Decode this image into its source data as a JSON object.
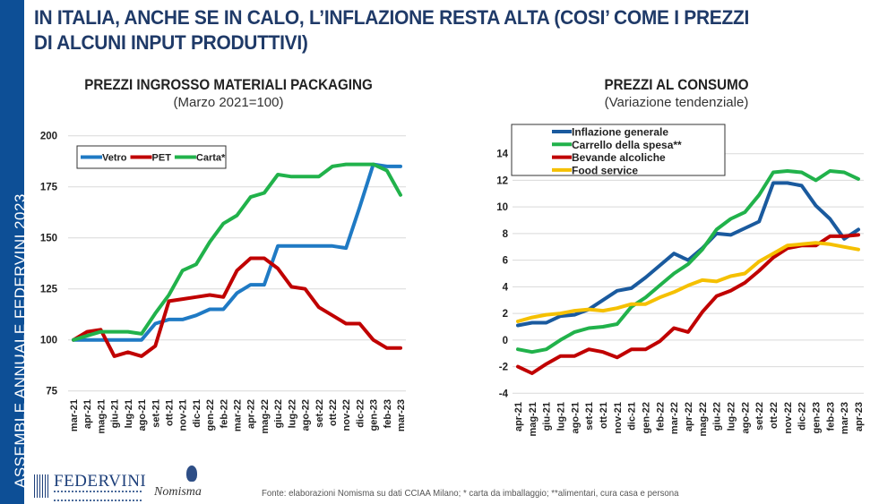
{
  "sidebar": {
    "text": "ASSEMBLE ANNUALE FEDERVINI 2023",
    "color": "#0d4f96"
  },
  "title": {
    "line1": "IN ITALIA, ANCHE SE IN CALO, L’INFLAZIONE RESTA ALTA (COSI’ COME I PREZZI",
    "line2": "DI ALCUNI INPUT PRODUTTIVI)"
  },
  "footer": {
    "source": "Fonte: elaborazioni Nomisma su dati CCIAA Milano; * carta da imballaggio; **alimentari, cura casa e persona"
  },
  "logos": {
    "federvini": "FEDERVINI",
    "nomisma": "Nomisma"
  },
  "chart_data": [
    {
      "type": "line",
      "title": "PREZZI INGROSSO MATERIALI PACKAGING",
      "subtitle": "(Marzo 2021=100)",
      "categories": [
        "mar-21",
        "apr-21",
        "mag-21",
        "giu-21",
        "lug-21",
        "ago-21",
        "set-21",
        "ott-21",
        "nov-21",
        "dic-21",
        "gen-22",
        "feb-22",
        "mar-22",
        "apr-22",
        "mag-22",
        "giu-22",
        "lug-22",
        "ago-22",
        "set-22",
        "ott-22",
        "nov-22",
        "dic-22",
        "gen-23",
        "feb-23",
        "mar-23"
      ],
      "ylim": [
        75,
        200
      ],
      "yticks": [
        75,
        100,
        125,
        150,
        175,
        200
      ],
      "grid": true,
      "legend": "top-left",
      "series": [
        {
          "name": "Vetro",
          "color": "#1f7ac4",
          "values": [
            100,
            100,
            100,
            100,
            100,
            100,
            108,
            110,
            110,
            112,
            115,
            115,
            123,
            127,
            127,
            146,
            146,
            146,
            146,
            146,
            145,
            165,
            186,
            185,
            185
          ]
        },
        {
          "name": "PET",
          "color": "#c00000",
          "values": [
            100,
            104,
            105,
            92,
            94,
            92,
            97,
            119,
            120,
            121,
            122,
            121,
            134,
            140,
            140,
            135,
            126,
            125,
            116,
            112,
            108,
            108,
            100,
            96,
            96
          ]
        },
        {
          "name": "Carta*",
          "color": "#21b24b",
          "values": [
            100,
            102,
            104,
            104,
            104,
            103,
            113,
            122,
            134,
            137,
            148,
            157,
            161,
            170,
            172,
            181,
            180,
            180,
            180,
            185,
            186,
            186,
            186,
            183,
            171
          ]
        }
      ]
    },
    {
      "type": "line",
      "title": "PREZZI AL CONSUMO",
      "subtitle": "(Variazione tendenziale)",
      "categories": [
        "apr-21",
        "mag-21",
        "giu-21",
        "lug-21",
        "ago-21",
        "set-21",
        "ott-21",
        "nov-21",
        "dic-21",
        "gen-22",
        "feb-22",
        "mar-22",
        "apr-22",
        "mag-22",
        "giu-22",
        "lug-22",
        "ago-22",
        "set-22",
        "ott-22",
        "nov-22",
        "dic-22",
        "gen-23",
        "feb-23",
        "mar-23",
        "apr-23"
      ],
      "ylim": [
        -4,
        14
      ],
      "yticks": [
        -4,
        -2,
        0,
        2,
        4,
        6,
        8,
        10,
        12,
        14
      ],
      "grid": true,
      "legend": "top-left",
      "series": [
        {
          "name": "Inflazione generale",
          "color": "#1a5a9e",
          "values": [
            1.1,
            1.3,
            1.3,
            1.8,
            1.9,
            2.3,
            3.0,
            3.7,
            3.9,
            4.7,
            5.6,
            6.5,
            6.0,
            6.9,
            8.0,
            7.9,
            8.4,
            8.9,
            11.8,
            11.8,
            11.6,
            10.1,
            9.1,
            7.6,
            8.3
          ]
        },
        {
          "name": "Carrello della spesa**",
          "color": "#21b24b",
          "values": [
            -0.7,
            -0.9,
            -0.7,
            0.0,
            0.6,
            0.9,
            1.0,
            1.2,
            2.5,
            3.2,
            4.1,
            5.0,
            5.7,
            6.8,
            8.3,
            9.1,
            9.6,
            10.9,
            12.6,
            12.7,
            12.6,
            12.0,
            12.7,
            12.6,
            12.1
          ]
        },
        {
          "name": "Bevande alcoliche",
          "color": "#c00000",
          "values": [
            -2.0,
            -2.5,
            -1.8,
            -1.2,
            -1.2,
            -0.7,
            -0.9,
            -1.3,
            -0.7,
            -0.7,
            -0.1,
            0.9,
            0.6,
            2.1,
            3.3,
            3.7,
            4.3,
            5.2,
            6.2,
            6.9,
            7.1,
            7.1,
            7.8,
            7.8,
            7.9
          ]
        },
        {
          "name": "Food service",
          "color": "#f5c000",
          "values": [
            1.4,
            1.7,
            1.9,
            2.0,
            2.2,
            2.3,
            2.2,
            2.4,
            2.7,
            2.7,
            3.2,
            3.6,
            4.1,
            4.5,
            4.4,
            4.8,
            5.0,
            5.9,
            6.5,
            7.1,
            7.2,
            7.3,
            7.2,
            7.0,
            6.8
          ]
        }
      ]
    }
  ]
}
